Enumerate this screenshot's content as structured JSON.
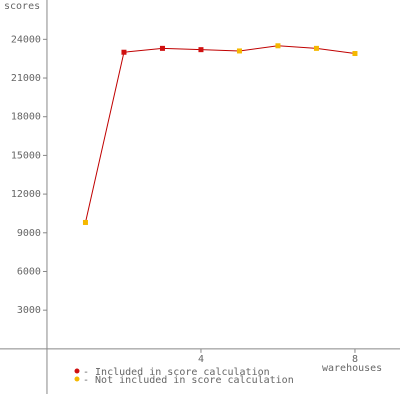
{
  "chart_data": {
    "type": "line",
    "y_label": "scores",
    "x_label": "warehouses",
    "x": [
      1,
      2,
      3,
      4,
      5,
      6,
      7,
      8
    ],
    "values": [
      9800,
      23000,
      23300,
      23200,
      23100,
      23500,
      23300,
      22900
    ],
    "included": [
      false,
      true,
      true,
      true,
      false,
      false,
      false,
      false
    ],
    "line_color": "#c00000",
    "legend": [
      {
        "label": "- Included in score calculation",
        "color": "#d01010"
      },
      {
        "label": "- Not included in score calculation",
        "color": "#f5b800"
      }
    ],
    "xlim": [
      -1.22,
      9.17
    ],
    "xticks": [
      4,
      8
    ],
    "ylim": [
      -3500,
      27050
    ],
    "yticks": [
      3000,
      6000,
      9000,
      12000,
      15000,
      18000,
      21000,
      24000
    ]
  }
}
